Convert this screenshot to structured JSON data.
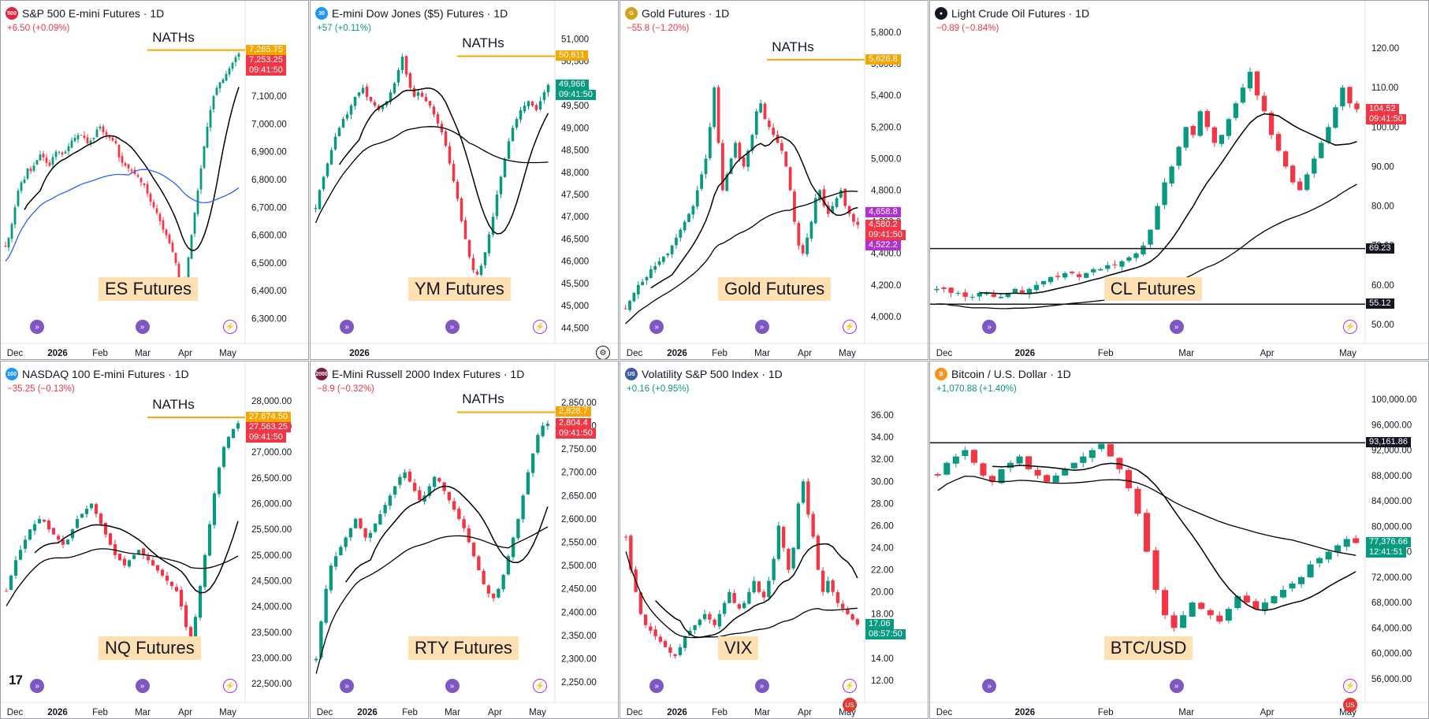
{
  "colors": {
    "up": "#089981",
    "down": "#f23645",
    "orange": "#f7a600",
    "purple": "#b130d0",
    "blue": "#2962ff",
    "ma": "#000000",
    "fill": "#ffe0b2"
  },
  "branding": {
    "tv_logo": "17"
  },
  "icons": {
    "replay": "replay-arrow-icon",
    "alert": "lightning-icon",
    "flag": "us-flag-icon",
    "settings": "gear-icon"
  },
  "panels": [
    {
      "id": "es",
      "title": "S&P 500 E-mini Futures · 1D",
      "logo_text": "500",
      "logo_color": "#e8213a",
      "change": "+6.50 (+0.09%)",
      "change_class": "neg",
      "big_label": "ES Futures",
      "nath": "NATHs",
      "y_ticks": [
        "7,100.00",
        "7,000.00",
        "6,900.00",
        "6,800.00",
        "6,700.00",
        "6,600.00",
        "6,500.00",
        "6,400.00",
        "6,300.00"
      ],
      "x_ticks": [
        "Dec",
        "2026",
        "Feb",
        "Mar",
        "Apr",
        "May"
      ],
      "price_labels": [
        {
          "text": "7,265.75",
          "bg": "#f7a600"
        },
        {
          "text": "7,253.25",
          "bg": "#f23645"
        },
        {
          "text": "09:41:50",
          "bg": "#f23645"
        }
      ]
    },
    {
      "id": "ym",
      "title": "E-mini Dow Jones ($5) Futures · 1D",
      "logo_text": "30",
      "logo_color": "#2196f3",
      "change": "+57 (+0.11%)",
      "change_class": "pos",
      "big_label": "YM Futures",
      "nath": "NATHs",
      "y_ticks": [
        "51,000",
        "50,500",
        "50,000",
        "49,500",
        "49,000",
        "48,500",
        "48,000",
        "47,500",
        "47,000",
        "46,500",
        "46,000",
        "45,500",
        "45,000",
        "44,500"
      ],
      "x_ticks": [
        "2026"
      ],
      "price_labels": [
        {
          "text": "50,611",
          "bg": "#f7a600"
        },
        {
          "text": "49,966",
          "bg": "#089981"
        },
        {
          "text": "09:41:50",
          "bg": "#089981"
        }
      ]
    },
    {
      "id": "gc",
      "title": "Gold Futures · 1D",
      "logo_text": "G",
      "logo_color": "#d4a017",
      "change": "−55.8 (−1.20%)",
      "change_class": "neg",
      "big_label": "Gold Futures",
      "nath": "NATHs",
      "y_ticks": [
        "5,800.0",
        "5,600.0",
        "5,400.0",
        "5,200.0",
        "5,000.0",
        "4,800.0",
        "4,600.0",
        "4,400.0",
        "4,200.0",
        "4,000.0"
      ],
      "x_ticks": [
        "Dec",
        "2026",
        "Feb",
        "Mar",
        "Apr",
        "May"
      ],
      "price_labels": [
        {
          "text": "5,626.8",
          "bg": "#f7a600"
        },
        {
          "text": "4,658.8",
          "bg": "#b130d0"
        },
        {
          "text": "4,580.2",
          "bg": "#f23645"
        },
        {
          "text": "09:41:50",
          "bg": "#f23645"
        },
        {
          "text": "4,522.2",
          "bg": "#b130d0"
        }
      ]
    },
    {
      "id": "cl",
      "title": "Light Crude Oil Futures · 1D",
      "logo_text": "●",
      "logo_color": "#131722",
      "change": "−0.89 (−0.84%)",
      "change_class": "neg",
      "big_label": "CL Futures",
      "nath": "",
      "y_ticks": [
        "120.00",
        "110.00",
        "100.00",
        "90.00",
        "80.00",
        "70.00",
        "60.00",
        "50.00"
      ],
      "x_ticks": [
        "Dec",
        "2026",
        "Feb",
        "Mar",
        "Apr",
        "May"
      ],
      "price_labels": [
        {
          "text": "104.52",
          "bg": "#f23645"
        },
        {
          "text": "09:41:50",
          "bg": "#f23645"
        },
        {
          "text": "69.23",
          "bg": "#131722"
        },
        {
          "text": "55.12",
          "bg": "#131722"
        }
      ]
    },
    {
      "id": "nq",
      "title": "NASDAQ 100 E-mini Futures · 1D",
      "logo_text": "100",
      "logo_color": "#2196f3",
      "change": "−35.25 (−0.13%)",
      "change_class": "neg",
      "big_label": "NQ Futures",
      "nath": "NATHs",
      "y_ticks": [
        "28,000.00",
        "27,500.00",
        "27,000.00",
        "26,500.00",
        "26,000.00",
        "25,500.00",
        "25,000.00",
        "24,500.00",
        "24,000.00",
        "23,500.00",
        "23,000.00",
        "22,500.00"
      ],
      "x_ticks": [
        "Dec",
        "2026",
        "Feb",
        "Mar",
        "Apr",
        "May"
      ],
      "price_labels": [
        {
          "text": "27,674.50",
          "bg": "#f7a600"
        },
        {
          "text": "27,563.25",
          "bg": "#f23645"
        },
        {
          "text": "09:41:50",
          "bg": "#f23645"
        }
      ]
    },
    {
      "id": "rty",
      "title": "E-Mini Russell 2000 Index Futures · 1D",
      "logo_text": "2000",
      "logo_color": "#7b1e3a",
      "change": "−8.9 (−0.32%)",
      "change_class": "neg",
      "big_label": "RTY Futures",
      "nath": "NATHs",
      "y_ticks": [
        "2,850.00",
        "2,800.00",
        "2,750.00",
        "2,700.00",
        "2,650.00",
        "2,600.00",
        "2,550.00",
        "2,500.00",
        "2,450.00",
        "2,400.00",
        "2,350.00",
        "2,300.00",
        "2,250.00"
      ],
      "x_ticks": [
        "Dec",
        "2026",
        "Feb",
        "Mar",
        "Apr",
        "May"
      ],
      "price_labels": [
        {
          "text": "2,828.7",
          "bg": "#f7a600"
        },
        {
          "text": "2,804.4",
          "bg": "#f23645"
        },
        {
          "text": "09:41:50",
          "bg": "#f23645"
        }
      ]
    },
    {
      "id": "vix",
      "title": "Volatility S&P 500 Index · 1D",
      "logo_text": "US",
      "logo_color": "#3c5aa6",
      "change": "+0.16 (+0.95%)",
      "change_class": "pos",
      "big_label": "VIX",
      "nath": "",
      "y_ticks": [
        "36.00",
        "34.00",
        "32.00",
        "30.00",
        "28.00",
        "26.00",
        "24.00",
        "22.00",
        "20.00",
        "18.00",
        "16.00",
        "14.00",
        "12.00"
      ],
      "x_ticks": [
        "Dec",
        "2026",
        "Feb",
        "Mar",
        "Apr",
        "May"
      ],
      "price_labels": [
        {
          "text": "17.06",
          "bg": "#089981"
        },
        {
          "text": "08:57:50",
          "bg": "#089981"
        }
      ]
    },
    {
      "id": "btc",
      "title": "Bitcoin / U.S. Dollar · 1D",
      "logo_text": "₿",
      "logo_color": "#f7931a",
      "change": "+1,070.88 (+1.40%)",
      "change_class": "pos",
      "big_label": "BTC/USD",
      "nath": "",
      "y_ticks": [
        "100,000.00",
        "96,000.00",
        "92,000.00",
        "88,000.00",
        "84,000.00",
        "80,000.00",
        "76,000.00",
        "72,000.00",
        "68,000.00",
        "64,000.00",
        "60,000.00",
        "56,000.00"
      ],
      "x_ticks": [
        "Dec",
        "2026",
        "Feb",
        "Mar",
        "Apr",
        "May"
      ],
      "price_labels": [
        {
          "text": "93,161.86",
          "bg": "#131722"
        },
        {
          "text": "77,376.66",
          "bg": "#089981"
        },
        {
          "text": "12:41:51",
          "bg": "#089981"
        }
      ]
    }
  ],
  "chart_data": [
    {
      "type": "candlestick",
      "id": "es",
      "ylim": [
        6250,
        7330
      ],
      "nath_level": 7265.75,
      "last": 7253.25,
      "x_ticks": [
        "Dec",
        "2026",
        "Feb",
        "Mar",
        "Apr",
        "May"
      ],
      "closes": [
        6560,
        6590,
        6640,
        6700,
        6760,
        6790,
        6800,
        6840,
        6830,
        6850,
        6870,
        6890,
        6880,
        6860,
        6850,
        6880,
        6900,
        6900,
        6890,
        6900,
        6920,
        6940,
        6950,
        6960,
        6960,
        6950,
        6930,
        6940,
        6950,
        6980,
        6990,
        6970,
        6960,
        6950,
        6940,
        6930,
        6880,
        6860,
        6850,
        6840,
        6830,
        6820,
        6810,
        6790,
        6780,
        6750,
        6720,
        6700,
        6680,
        6650,
        6620,
        6600,
        6570,
        6540,
        6500,
        6440,
        6380,
        6440,
        6520,
        6600,
        6680,
        6760,
        6840,
        6920,
        6990,
        7050,
        7100,
        7130,
        7150,
        7160,
        7180,
        7200,
        7220,
        7240,
        7253
      ]
    },
    {
      "type": "candlestick",
      "id": "ym",
      "ylim": [
        44400,
        51150
      ],
      "nath_level": 50611,
      "last": 49966,
      "x_ticks": [
        "2026"
      ],
      "closes": [
        47200,
        47600,
        47900,
        48200,
        48500,
        48800,
        49000,
        49200,
        49300,
        49500,
        49700,
        49800,
        49900,
        49700,
        49600,
        49500,
        49400,
        49500,
        49600,
        49800,
        50000,
        50300,
        50600,
        50200,
        49900,
        49700,
        49800,
        49700,
        49600,
        49500,
        49300,
        49100,
        48900,
        48600,
        48200,
        47800,
        47400,
        46900,
        46500,
        46100,
        45800,
        45700,
        45900,
        46200,
        46600,
        47000,
        47500,
        47900,
        48300,
        48700,
        49000,
        49200,
        49400,
        49500,
        49600,
        49500,
        49400,
        49600,
        49800,
        49966
      ]
    },
    {
      "type": "candlestick",
      "id": "gc",
      "ylim": [
        3900,
        5800
      ],
      "nath_level": 5626.8,
      "last": 4580.2,
      "x_ticks": [
        "Dec",
        "2026",
        "Feb",
        "Mar",
        "Apr",
        "May"
      ],
      "closes": [
        4050,
        4100,
        4150,
        4200,
        4220,
        4250,
        4300,
        4320,
        4350,
        4380,
        4400,
        4450,
        4500,
        4550,
        4600,
        4650,
        4700,
        4800,
        4900,
        5000,
        5200,
        5450,
        5100,
        4800,
        4900,
        5000,
        5100,
        5000,
        4950,
        5050,
        5150,
        5300,
        5350,
        5250,
        5200,
        5150,
        5100,
        5050,
        4950,
        4800,
        4600,
        4450,
        4400,
        4500,
        4600,
        4750,
        4800,
        4700,
        4650,
        4700,
        4750,
        4800,
        4700,
        4650,
        4600,
        4580
      ]
    },
    {
      "type": "candlestick",
      "id": "cl",
      "ylim": [
        48,
        124
      ],
      "last": 104.52,
      "levels": [
        69.23,
        55.12
      ],
      "x_ticks": [
        "Dec",
        "2026",
        "Feb",
        "Mar",
        "Apr",
        "May"
      ],
      "closes": [
        59,
        59,
        58,
        58,
        57,
        57,
        58,
        58,
        57,
        57,
        58,
        59,
        58,
        59,
        60,
        61,
        62,
        62,
        63,
        63,
        62,
        63,
        64,
        64,
        65,
        65,
        66,
        67,
        68,
        70,
        74,
        80,
        86,
        90,
        95,
        100,
        98,
        104,
        100,
        96,
        98,
        102,
        106,
        110,
        114,
        108,
        104,
        98,
        94,
        90,
        86,
        84,
        88,
        92,
        96,
        100,
        105,
        110,
        106,
        104.52
      ]
    },
    {
      "type": "candlestick",
      "id": "nq",
      "ylim": [
        22350,
        28150
      ],
      "nath_level": 27674.5,
      "last": 27563.25,
      "x_ticks": [
        "Dec",
        "2026",
        "Feb",
        "Mar",
        "Apr",
        "May"
      ],
      "closes": [
        24300,
        24600,
        24900,
        25100,
        25300,
        25500,
        25600,
        25700,
        25650,
        25500,
        25400,
        25300,
        25200,
        25300,
        25500,
        25700,
        25800,
        25900,
        26000,
        25800,
        25600,
        25400,
        25200,
        25000,
        24900,
        24800,
        24900,
        25000,
        25100,
        25000,
        24900,
        24800,
        24700,
        24600,
        24500,
        24400,
        24300,
        24000,
        23600,
        23200,
        23800,
        24400,
        25000,
        25600,
        26200,
        26700,
        27100,
        27300,
        27450,
        27563
      ]
    },
    {
      "type": "candlestick",
      "id": "rty",
      "ylim": [
        2230,
        2870
      ],
      "nath_level": 2828.7,
      "last": 2804.4,
      "x_ticks": [
        "Dec",
        "2026",
        "Feb",
        "Mar",
        "Apr",
        "May"
      ],
      "closes": [
        2300,
        2380,
        2450,
        2500,
        2520,
        2540,
        2560,
        2580,
        2600,
        2580,
        2560,
        2570,
        2590,
        2610,
        2630,
        2650,
        2670,
        2690,
        2700,
        2680,
        2660,
        2640,
        2650,
        2670,
        2690,
        2680,
        2660,
        2640,
        2620,
        2600,
        2580,
        2550,
        2520,
        2490,
        2460,
        2440,
        2430,
        2450,
        2480,
        2520,
        2560,
        2600,
        2650,
        2700,
        2740,
        2780,
        2800,
        2804
      ]
    },
    {
      "type": "candlestick",
      "id": "vix",
      "ylim": [
        11,
        38
      ],
      "last": 17.06,
      "x_ticks": [
        "Dec",
        "2026",
        "Feb",
        "Mar",
        "Apr",
        "May"
      ],
      "closes": [
        25,
        22,
        20,
        18,
        17,
        16.5,
        16,
        15.5,
        15,
        14.5,
        14.2,
        15,
        16,
        16.5,
        17,
        17.5,
        18,
        17.5,
        17,
        18,
        19,
        20,
        19,
        18.5,
        19,
        20,
        21,
        20,
        19.5,
        21,
        23,
        26,
        24,
        22,
        24,
        28,
        30,
        27,
        25,
        22,
        20,
        21,
        20,
        19,
        18.5,
        18,
        17.5,
        17.06
      ]
    },
    {
      "type": "candlestick",
      "id": "btc",
      "ylim": [
        54000,
        101000
      ],
      "last": 77376.66,
      "levels": [
        93161.86
      ],
      "x_ticks": [
        "Dec",
        "2026",
        "Feb",
        "Mar",
        "Apr",
        "May"
      ],
      "closes": [
        88000,
        90000,
        91000,
        92000,
        90000,
        88000,
        87000,
        89000,
        90000,
        91000,
        89000,
        88000,
        87000,
        88000,
        89000,
        90000,
        91000,
        92000,
        93000,
        91000,
        89000,
        86000,
        82000,
        76000,
        70000,
        66000,
        64000,
        66000,
        68000,
        67000,
        66000,
        65000,
        67000,
        69000,
        68000,
        67000,
        68000,
        69000,
        70000,
        71000,
        72000,
        74000,
        75000,
        76000,
        77000,
        78000,
        77376
      ]
    }
  ]
}
